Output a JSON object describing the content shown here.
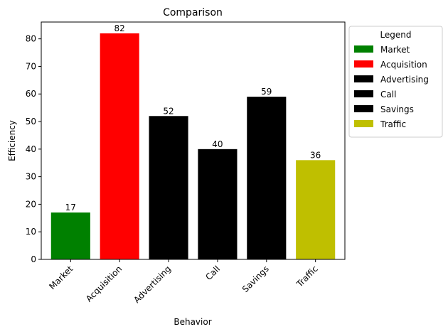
{
  "chart_data": {
    "type": "bar",
    "title": "Comparison",
    "xlabel": "Behavior",
    "ylabel": "Efficiency",
    "categories": [
      "Market",
      "Acquisition",
      "Advertising",
      "Call",
      "Savings",
      "Traffic"
    ],
    "values": [
      17,
      82,
      52,
      40,
      59,
      36
    ],
    "colors": [
      "#008000",
      "#ff0000",
      "#000000",
      "#000000",
      "#000000",
      "#bfbf00"
    ],
    "ylim": [
      0,
      86.1
    ],
    "yticks": [
      0,
      10,
      20,
      30,
      40,
      50,
      60,
      70,
      80
    ],
    "grid": false,
    "legend": {
      "title": "Legend",
      "placement": "outside-top-right",
      "entries": [
        "Market",
        "Acquisition",
        "Advertising",
        "Call",
        "Savings",
        "Traffic"
      ]
    }
  }
}
